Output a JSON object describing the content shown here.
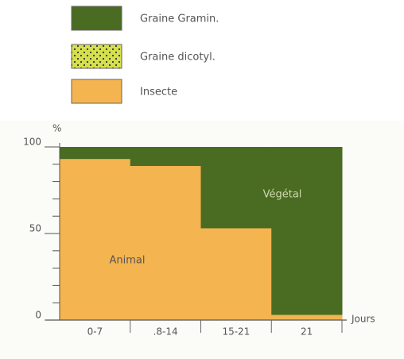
{
  "chart_data": {
    "type": "stacked_step",
    "y_label": "%",
    "x_label": "Jours",
    "categories": [
      "0-7",
      ".8-14",
      "15-21",
      "21"
    ],
    "series": [
      {
        "name": "Graine Gramin.",
        "color": "#4a6b22",
        "values": [
          7,
          11,
          47,
          97
        ]
      },
      {
        "name": "Graine dicotyl.",
        "color": "#d6e04c",
        "values": [
          0,
          0,
          0,
          0
        ]
      },
      {
        "name": "Insecte",
        "color": "#f4b450",
        "values": [
          93,
          89,
          53,
          3
        ]
      }
    ],
    "annotations": [
      "Animal",
      "Végétal"
    ],
    "ylim": [
      0,
      100
    ],
    "yticks": [
      0,
      50,
      100
    ],
    "yticks_minor": [
      10,
      20,
      30,
      40,
      60,
      70,
      80,
      90
    ]
  }
}
